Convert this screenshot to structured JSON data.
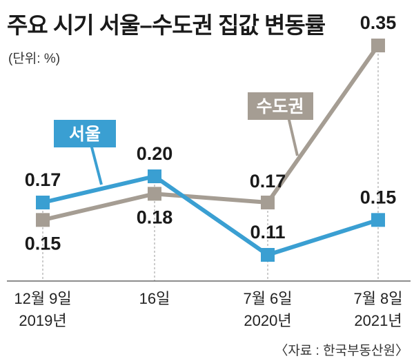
{
  "header": {
    "title": "주요 시기 서울–수도권 집값 변동률",
    "unit": "(단위: %)"
  },
  "footer": {
    "source": "〈자료 : 한국부동산원〉"
  },
  "colors": {
    "seoul": "#3a9fd2",
    "capital_area": "#a59d93",
    "axis": "#666666",
    "guide": "#9a9a9a"
  },
  "chart_data": {
    "type": "line",
    "title": "주요 시기 서울–수도권 집값 변동률",
    "ylabel": "(단위: %)",
    "xlabel": "",
    "categories": [
      {
        "line1": "12월 9일",
        "line2": "2019년"
      },
      {
        "line1": "16일",
        "line2": ""
      },
      {
        "line1": "7월 6일",
        "line2": "2020년"
      },
      {
        "line1": "7월 8일",
        "line2": "2021년"
      }
    ],
    "series": [
      {
        "name": "서울",
        "values": [
          0.17,
          0.2,
          0.11,
          0.15
        ],
        "labels": [
          "0.17",
          "0.20",
          "0.11",
          "0.15"
        ]
      },
      {
        "name": "수도권",
        "values": [
          0.15,
          0.18,
          0.17,
          0.35
        ],
        "labels": [
          "0.15",
          "0.18",
          "0.17",
          "0.35"
        ]
      }
    ],
    "ylim": [
      0.05,
      0.36
    ],
    "grid": false,
    "legend": "inline callouts"
  }
}
